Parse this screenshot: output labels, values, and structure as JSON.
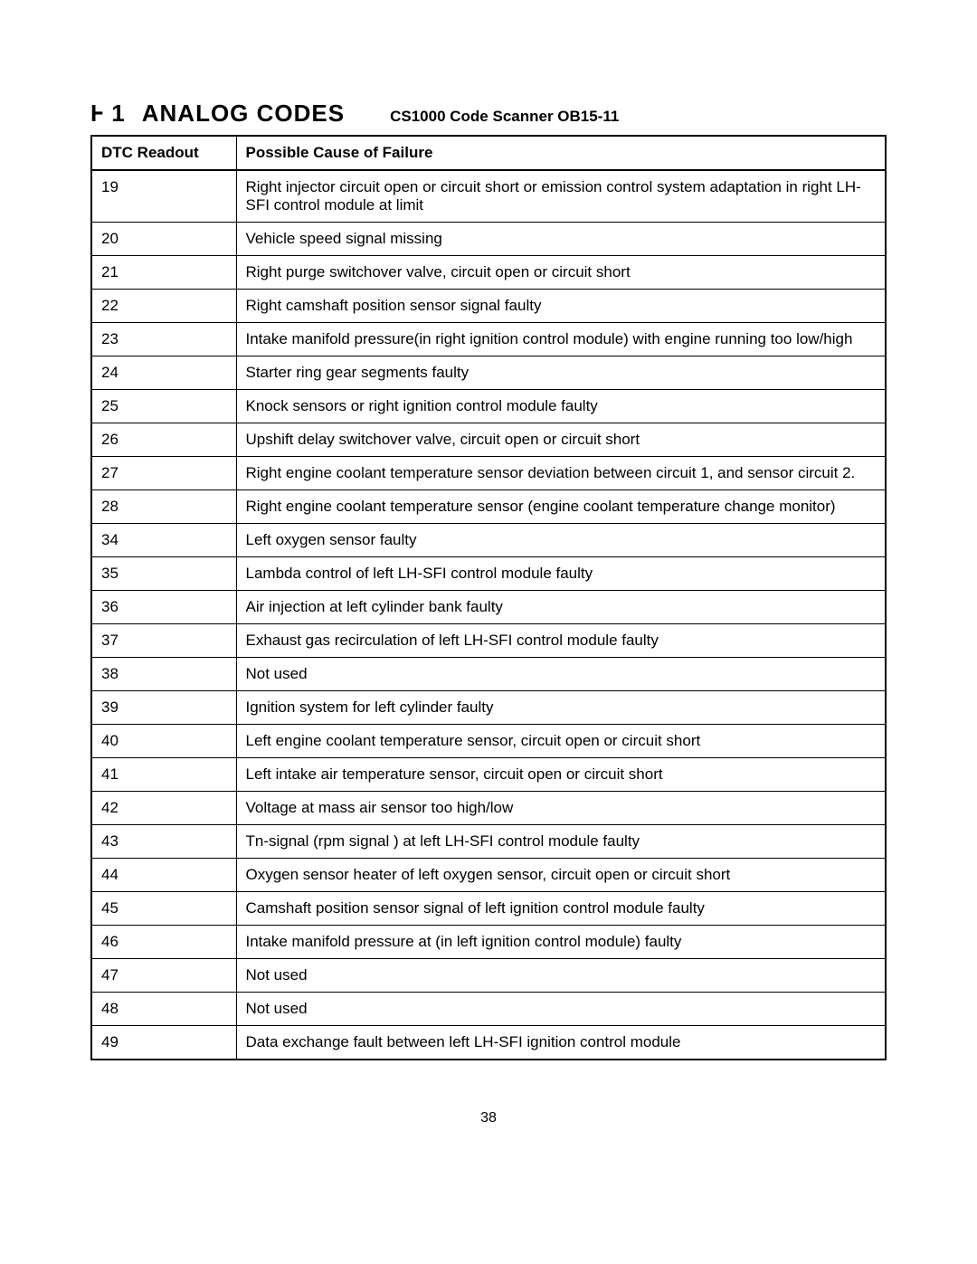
{
  "header": {
    "sectionId": "Ⱶ 1",
    "title": "ANALOG CODES",
    "subtitle": "CS1000 Code Scanner  OB15-11"
  },
  "table": {
    "columns": [
      "DTC Readout",
      "Possible Cause of Failure"
    ],
    "rows": [
      [
        "19",
        "Right injector circuit open or circuit short or emission control system adaptation in right LH-SFI control module at limit"
      ],
      [
        "20",
        "Vehicle speed signal missing"
      ],
      [
        "21",
        "Right purge switchover valve, circuit open or circuit short"
      ],
      [
        "22",
        "Right camshaft position sensor signal faulty"
      ],
      [
        "23",
        "Intake manifold pressure(in right ignition control module) with engine running too low/high"
      ],
      [
        "24",
        "Starter ring gear segments faulty"
      ],
      [
        "25",
        "Knock sensors or right ignition control module faulty"
      ],
      [
        "26",
        "Upshift delay switchover valve, circuit open or circuit short"
      ],
      [
        "27",
        "Right engine coolant temperature sensor deviation between circuit 1, and sensor circuit 2."
      ],
      [
        "28",
        "Right engine coolant temperature sensor (engine coolant temperature change monitor)"
      ],
      [
        "34",
        "Left oxygen sensor faulty"
      ],
      [
        "35",
        "Lambda control of left LH-SFI control module faulty"
      ],
      [
        "36",
        "Air injection at left cylinder bank faulty"
      ],
      [
        "37",
        "Exhaust gas recirculation of left LH-SFI control module faulty"
      ],
      [
        "38",
        "Not used"
      ],
      [
        "39",
        "Ignition system for left cylinder faulty"
      ],
      [
        "40",
        "Left engine coolant temperature sensor, circuit open or circuit short"
      ],
      [
        "41",
        "Left intake air temperature sensor, circuit open or circuit short"
      ],
      [
        "42",
        "Voltage at mass air sensor too high/low"
      ],
      [
        "43",
        "Tn-signal (rpm signal ) at left LH-SFI control module faulty"
      ],
      [
        "44",
        "Oxygen sensor heater of left oxygen sensor, circuit open or circuit short"
      ],
      [
        "45",
        "Camshaft position sensor signal of left ignition control module faulty"
      ],
      [
        "46",
        "Intake manifold pressure at (in left ignition control module) faulty"
      ],
      [
        "47",
        "Not used"
      ],
      [
        "48",
        "Not used"
      ],
      [
        "49",
        "Data exchange fault between left LH-SFI ignition control module"
      ]
    ]
  },
  "pageNumber": "38"
}
